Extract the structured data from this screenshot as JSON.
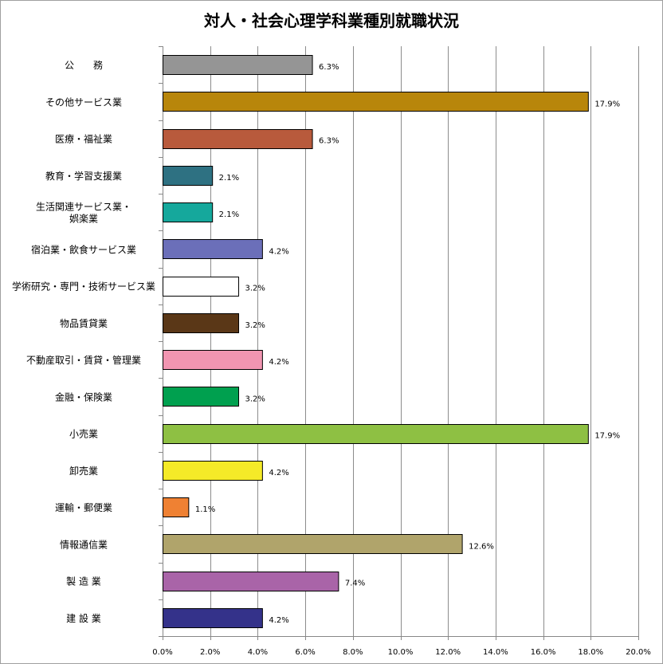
{
  "chart_data": {
    "type": "bar",
    "orientation": "horizontal",
    "title": "対人・社会心理学科業種別就職状況",
    "categories": [
      "公　　務",
      "その他サービス業",
      "医療・福祉業",
      "教育・学習支援業",
      "生活関連サービス業・娯楽業",
      "宿泊業・飲食サービス業",
      "学術研究・専門・技術サービス業",
      "物品賃貸業",
      "不動産取引・賃貸・管理業",
      "金融・保険業",
      "小売業",
      "卸売業",
      "運輸・郵便業",
      "情報通信業",
      "製 造 業",
      "建 設 業"
    ],
    "category_lines": [
      [
        "公　　務"
      ],
      [
        "その他サービス業"
      ],
      [
        "医療・福祉業"
      ],
      [
        "教育・学習支援業"
      ],
      [
        "生活関連サービス業・",
        "娯楽業"
      ],
      [
        "宿泊業・飲食サービス業"
      ],
      [
        "学術研究・専門・技術サービス業"
      ],
      [
        "物品賃貸業"
      ],
      [
        "不動産取引・賃貸・管理業"
      ],
      [
        "金融・保険業"
      ],
      [
        "小売業"
      ],
      [
        "卸売業"
      ],
      [
        "運輸・郵便業"
      ],
      [
        "情報通信業"
      ],
      [
        "製 造 業"
      ],
      [
        "建 設 業"
      ]
    ],
    "values": [
      6.3,
      17.9,
      6.3,
      2.1,
      2.1,
      4.2,
      3.2,
      3.2,
      4.2,
      3.2,
      17.9,
      4.2,
      1.1,
      12.6,
      7.4,
      4.2
    ],
    "value_labels": [
      "6.3%",
      "17.9%",
      "6.3%",
      "2.1%",
      "2.1%",
      "4.2%",
      "3.2%",
      "3.2%",
      "4.2%",
      "3.2%",
      "17.9%",
      "4.2%",
      "1.1%",
      "12.6%",
      "7.4%",
      "4.2%"
    ],
    "colors": [
      "#959595",
      "#b8860b",
      "#b85a3c",
      "#2e7182",
      "#15a89c",
      "#6b6fb9",
      "#ffffff",
      "#5a3717",
      "#f195b1",
      "#00a04f",
      "#8ec043",
      "#f5ea28",
      "#ef8133",
      "#b0a46b",
      "#a964a8",
      "#34328a"
    ],
    "xlim": [
      0,
      20
    ],
    "xticks": [
      0,
      2,
      4,
      6,
      8,
      10,
      12,
      14,
      16,
      18,
      20
    ],
    "xtick_labels": [
      "0.0%",
      "2.0%",
      "4.0%",
      "6.0%",
      "8.0%",
      "10.0%",
      "12.0%",
      "14.0%",
      "16.0%",
      "18.0%",
      "20.0%"
    ],
    "xlabel": "",
    "ylabel": "",
    "grid": true,
    "legend": "none"
  }
}
